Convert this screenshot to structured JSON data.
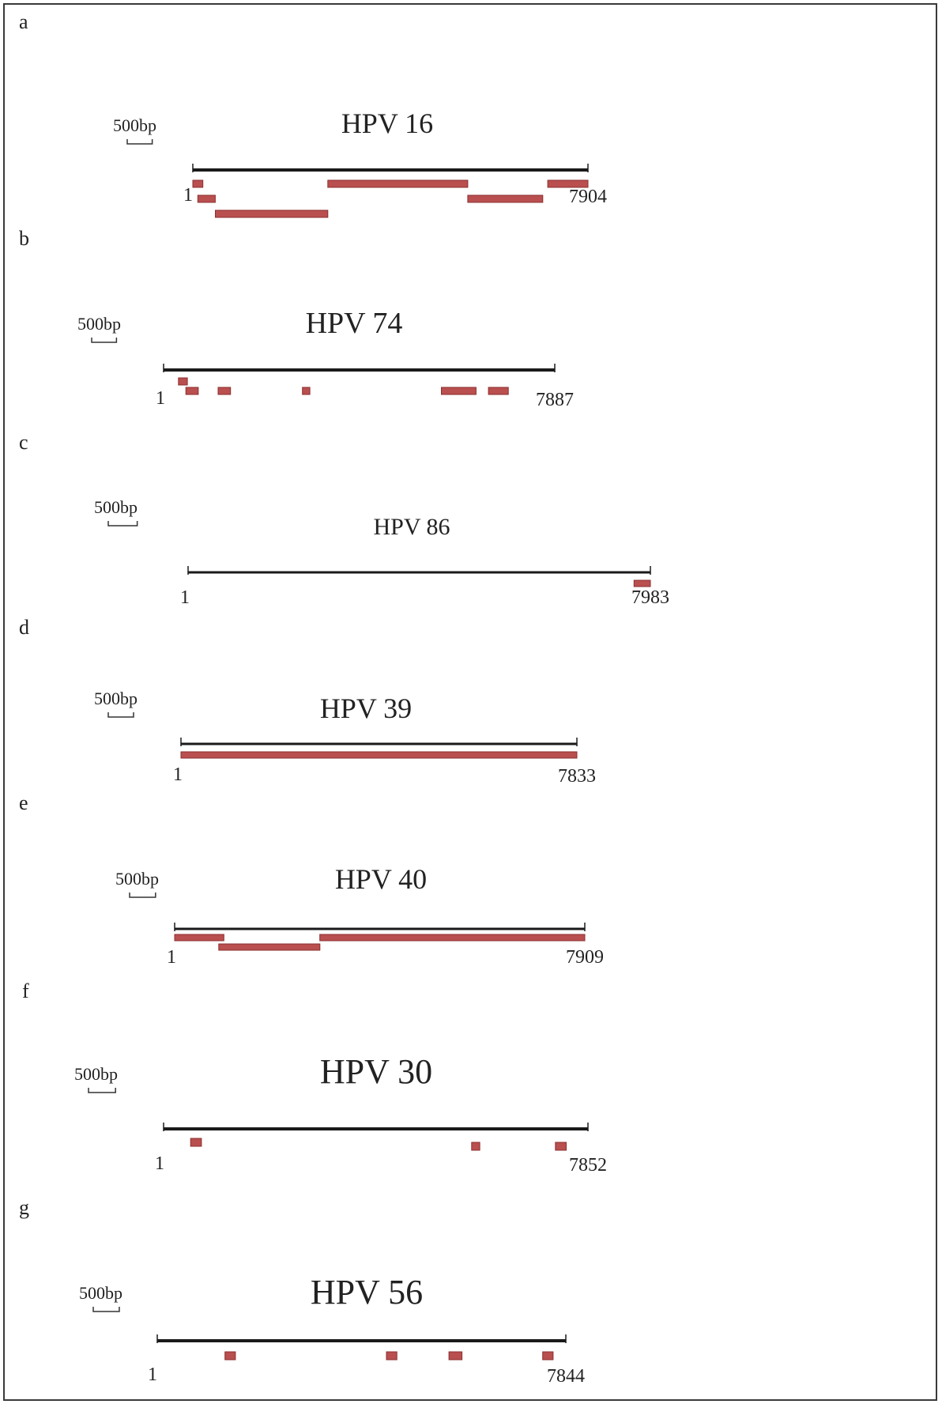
{
  "figure": {
    "colors": {
      "genome_line": "#1a1a1a",
      "segment_fill": "#b94f4f",
      "segment_stroke": "#8c2f2f"
    },
    "panels": [
      {
        "letter": "a",
        "scale_label": "500bp",
        "title": "HPV 16",
        "start_label": "1",
        "genome_length": 7904,
        "end_label": "7904",
        "segments": [
          [
            0,
            200
          ],
          [
            100,
            450
          ],
          [
            450,
            2700
          ],
          [
            2700,
            5500
          ],
          [
            5500,
            7000
          ],
          [
            7100,
            7904
          ]
        ]
      },
      {
        "letter": "b",
        "scale_label": "500bp",
        "title": "HPV 74",
        "start_label": "1",
        "genome_length": 7887,
        "end_label": "7887",
        "segments": [
          [
            300,
            480
          ],
          [
            450,
            700
          ],
          [
            1100,
            1350
          ],
          [
            2800,
            2950
          ],
          [
            5600,
            6300
          ],
          [
            6550,
            6950
          ]
        ]
      },
      {
        "letter": "c",
        "scale_label": "500bp",
        "title": "HPV 86",
        "start_label": "1",
        "genome_length": 7983,
        "end_label": "7983",
        "segments": [
          [
            7700,
            7983
          ]
        ]
      },
      {
        "letter": "d",
        "scale_label": "500bp",
        "title": "HPV 39",
        "start_label": "1",
        "genome_length": 7833,
        "end_label": "7833",
        "segments": [
          [
            0,
            7833
          ]
        ]
      },
      {
        "letter": "e",
        "scale_label": "500bp",
        "title": "HPV 40",
        "start_label": "1",
        "genome_length": 7909,
        "end_label": "7909",
        "segments": [
          [
            0,
            950
          ],
          [
            850,
            2800
          ],
          [
            2800,
            7909
          ]
        ]
      },
      {
        "letter": "f",
        "scale_label": "500bp",
        "title": "HPV 30",
        "start_label": "1",
        "genome_length": 7852,
        "end_label": "7852",
        "segments": [
          [
            500,
            700
          ],
          [
            5700,
            5850
          ],
          [
            7250,
            7450
          ]
        ]
      },
      {
        "letter": "g",
        "scale_label": "500bp",
        "title": "HPV 56",
        "start_label": "1",
        "genome_length": 7844,
        "end_label": "7844",
        "segments": [
          [
            1300,
            1500
          ],
          [
            4400,
            4600
          ],
          [
            5600,
            5850
          ],
          [
            7400,
            7600
          ]
        ]
      }
    ]
  }
}
